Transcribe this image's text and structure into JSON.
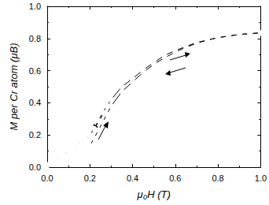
{
  "chart_data": {
    "type": "line",
    "x_label": "μ₀H (T)",
    "y_label": "M per Cr atom (μB)",
    "xlim": [
      0,
      1.0
    ],
    "ylim": [
      0,
      1.0
    ],
    "xticks": [
      {
        "value": 0,
        "label": "0.0"
      },
      {
        "value": 0.2,
        "label": "0.2"
      },
      {
        "value": 0.4,
        "label": "0.4"
      },
      {
        "value": 0.6,
        "label": "0.6"
      },
      {
        "value": 0.8,
        "label": "0.8"
      },
      {
        "value": 1.0,
        "label": "1.0"
      }
    ],
    "yticks": [
      {
        "value": 0,
        "label": "0.0"
      },
      {
        "value": 0.2,
        "label": "0.2"
      },
      {
        "value": 0.4,
        "label": "0.4"
      },
      {
        "value": 0.6,
        "label": "0.6"
      },
      {
        "value": 0.8,
        "label": "0.8"
      },
      {
        "value": 1.0,
        "label": "1.0"
      }
    ],
    "grid": false,
    "series": [
      {
        "color": "#000000",
        "marker": "circle",
        "line_style": "solid",
        "x": [
          0,
          0.02,
          0.04,
          0.06,
          0.08,
          0.1,
          0.12,
          0.14,
          0.16,
          0.18,
          0.2,
          0.22,
          0.24,
          0.26,
          0.28,
          0.3,
          0.35,
          0.4,
          0.45,
          0.5,
          0.55,
          0.6,
          0.65,
          0.7,
          0.75,
          0.8,
          0.85,
          0.9,
          0.95,
          1.0
        ],
        "values": [
          0.01,
          0.02,
          0.03,
          0.04,
          0.055,
          0.065,
          0.08,
          0.09,
          0.105,
          0.12,
          0.135,
          0.18,
          0.23,
          0.28,
          0.33,
          0.38,
          0.47,
          0.53,
          0.59,
          0.64,
          0.68,
          0.715,
          0.745,
          0.77,
          0.79,
          0.805,
          0.815,
          0.825,
          0.83,
          0.835
        ]
      },
      {
        "color": "#000000",
        "marker": "circle",
        "line_style": "solid",
        "x": [
          1.0,
          0.95,
          0.9,
          0.85,
          0.8,
          0.75,
          0.7,
          0.65,
          0.6,
          0.55,
          0.5,
          0.45,
          0.4,
          0.35,
          0.3,
          0.28,
          0.26,
          0.24,
          0.22,
          0.2,
          0.18,
          0.16,
          0.14,
          0.12,
          0.1,
          0.08,
          0.06,
          0.04,
          0.02,
          0
        ],
        "values": [
          0.835,
          0.83,
          0.825,
          0.815,
          0.805,
          0.79,
          0.775,
          0.75,
          0.725,
          0.695,
          0.65,
          0.605,
          0.55,
          0.5,
          0.42,
          0.38,
          0.34,
          0.29,
          0.24,
          0.2,
          0.18,
          0.16,
          0.14,
          0.12,
          0.1,
          0.08,
          0.065,
          0.045,
          0.03,
          0.015
        ]
      }
    ]
  }
}
